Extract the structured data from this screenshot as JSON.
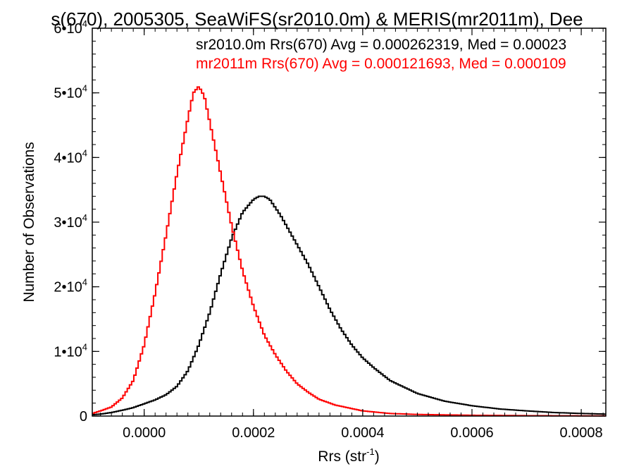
{
  "chart_data": {
    "type": "line",
    "title": "s(670), 2005305, SeaWiFS(sr2010.0m) & MERIS(mr2011m), Dee",
    "xlabel": "Rrs (str",
    "xlabel_sup": "-1",
    "xlabel_close": ")",
    "ylabel": "Number of Observations",
    "xlim": [
      -9.5e-05,
      0.000845
    ],
    "ylim": [
      0,
      60000
    ],
    "x_ticks": [
      {
        "value": 0.0,
        "label": "0.0000"
      },
      {
        "value": 0.0002,
        "label": "0.0002"
      },
      {
        "value": 0.0004,
        "label": "0.0004"
      },
      {
        "value": 0.0006,
        "label": "0.0006"
      },
      {
        "value": 0.0008,
        "label": "0.0008"
      }
    ],
    "y_ticks": [
      {
        "value": 0,
        "label": "0",
        "sup": ""
      },
      {
        "value": 10000,
        "label": "1•10",
        "sup": "4"
      },
      {
        "value": 20000,
        "label": "2•10",
        "sup": "4"
      },
      {
        "value": 30000,
        "label": "3•10",
        "sup": "4"
      },
      {
        "value": 40000,
        "label": "4•10",
        "sup": "4"
      },
      {
        "value": 50000,
        "label": "5•10",
        "sup": "4"
      },
      {
        "value": 60000,
        "label": "6•10",
        "sup": "4"
      }
    ],
    "annotations": [
      {
        "text": "sr2010.0m Rrs(670) Avg = 0.000262319, Med = 0.00023",
        "color": "#000000"
      },
      {
        "text": "mr2011m Rrs(670) Avg = 0.000121693, Med = 0.000109",
        "color": "#ff0000"
      }
    ],
    "series": [
      {
        "color": "#000000",
        "style": "step",
        "points": [
          [
            -9.5e-05,
            200
          ],
          [
            -8e-05,
            300
          ],
          [
            -6e-05,
            550
          ],
          [
            -4e-05,
            900
          ],
          [
            -2e-05,
            1300
          ],
          [
            0.0,
            1900
          ],
          [
            2e-05,
            2500
          ],
          [
            4e-05,
            3300
          ],
          [
            6e-05,
            4600
          ],
          [
            8e-05,
            7000
          ],
          [
            0.0001,
            11000
          ],
          [
            0.00012,
            16000
          ],
          [
            0.00014,
            22000
          ],
          [
            0.00016,
            27500
          ],
          [
            0.00018,
            31500
          ],
          [
            0.0002,
            33500
          ],
          [
            0.00021,
            34000
          ],
          [
            0.00022,
            34000
          ],
          [
            0.00023,
            33500
          ],
          [
            0.00025,
            31000
          ],
          [
            0.00027,
            28000
          ],
          [
            0.0003,
            23500
          ],
          [
            0.00032,
            20000
          ],
          [
            0.00034,
            16500
          ],
          [
            0.00036,
            13500
          ],
          [
            0.00038,
            11000
          ],
          [
            0.0004,
            9000
          ],
          [
            0.00042,
            7500
          ],
          [
            0.00045,
            5500
          ],
          [
            0.00048,
            4300
          ],
          [
            0.0005,
            3500
          ],
          [
            0.00055,
            2300
          ],
          [
            0.0006,
            1600
          ],
          [
            0.00065,
            1100
          ],
          [
            0.0007,
            800
          ],
          [
            0.00075,
            550
          ],
          [
            0.0008,
            400
          ],
          [
            0.000845,
            300
          ]
        ]
      },
      {
        "color": "#ff0000",
        "style": "step",
        "points": [
          [
            -9.5e-05,
            400
          ],
          [
            -8e-05,
            800
          ],
          [
            -6e-05,
            1400
          ],
          [
            -4e-05,
            2800
          ],
          [
            -2e-05,
            5500
          ],
          [
            0.0,
            11000
          ],
          [
            2e-05,
            19000
          ],
          [
            4e-05,
            28000
          ],
          [
            6e-05,
            37500
          ],
          [
            8e-05,
            46000
          ],
          [
            9e-05,
            50000
          ],
          [
            0.0001,
            51000
          ],
          [
            0.00011,
            49500
          ],
          [
            0.00012,
            45500
          ],
          [
            0.00014,
            37500
          ],
          [
            0.00016,
            29500
          ],
          [
            0.00018,
            22500
          ],
          [
            0.0002,
            17000
          ],
          [
            0.00022,
            12500
          ],
          [
            0.00024,
            9500
          ],
          [
            0.00026,
            7000
          ],
          [
            0.00028,
            5000
          ],
          [
            0.0003,
            3700
          ],
          [
            0.00032,
            2600
          ],
          [
            0.00035,
            1700
          ],
          [
            0.0004,
            800
          ],
          [
            0.00045,
            400
          ],
          [
            0.0005,
            250
          ],
          [
            0.0006,
            120
          ],
          [
            0.0007,
            60
          ],
          [
            0.000845,
            20
          ]
        ]
      }
    ]
  }
}
